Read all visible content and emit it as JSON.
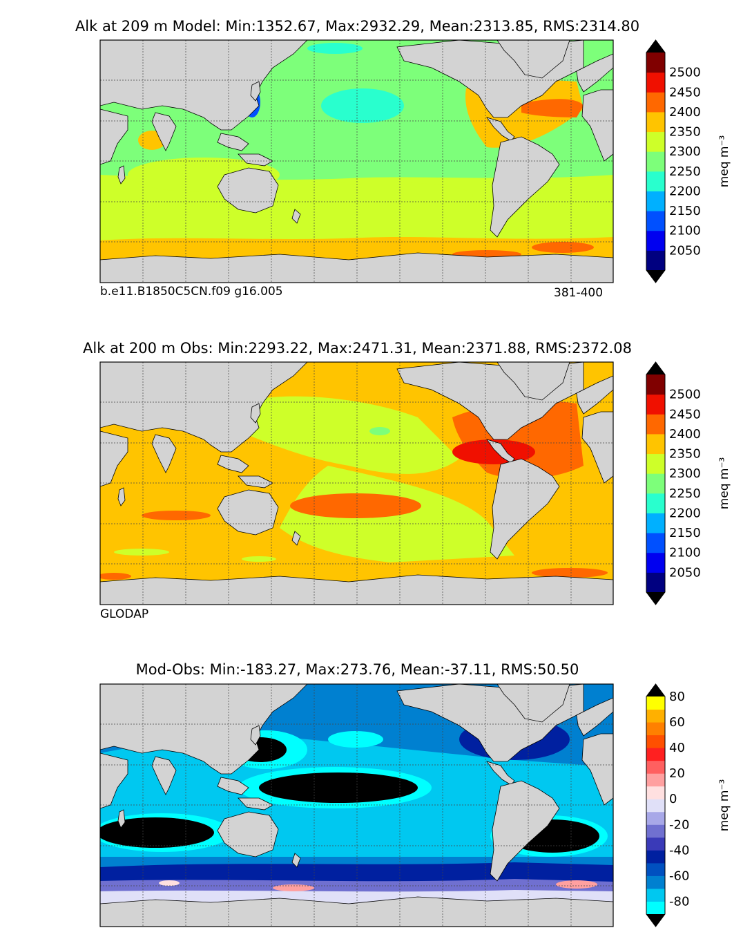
{
  "panels": [
    {
      "title": "Alk at 209 m Model: Min:1352.67, Max:2932.29, Mean:2313.85, RMS:2314.80",
      "note_left": "b.e11.B1850C5CN.f09 g16.005",
      "note_right": "381-400"
    },
    {
      "title": "Alk at 200 m Obs: Min:2293.22, Max:2471.31, Mean:2371.88, RMS:2372.08",
      "note_left": "GLODAP",
      "note_right": ""
    },
    {
      "title": "Mod-Obs: Min:-183.27, Max:273.76, Mean:-37.11, RMS:50.50",
      "note_left": "",
      "note_right": ""
    }
  ],
  "colorbars": [
    {
      "unit": "meq m⁻³",
      "levels": [
        2050,
        2100,
        2150,
        2200,
        2250,
        2300,
        2350,
        2400,
        2450,
        2500
      ],
      "labels": [
        "2050",
        "2100",
        "2150",
        "2200",
        "2250",
        "2300",
        "2350",
        "2400",
        "2450",
        "2500"
      ],
      "colors": [
        "#000080",
        "#0000f0",
        "#0050ff",
        "#00b0ff",
        "#29ffce",
        "#7dff7a",
        "#ceff29",
        "#ffc400",
        "#ff6800",
        "#f01000",
        "#800000"
      ],
      "under": "#000000",
      "over": "#000000"
    },
    {
      "unit": "meq m⁻³",
      "levels": [
        2050,
        2100,
        2150,
        2200,
        2250,
        2300,
        2350,
        2400,
        2450,
        2500
      ],
      "labels": [
        "2050",
        "2100",
        "2150",
        "2200",
        "2250",
        "2300",
        "2350",
        "2400",
        "2450",
        "2500"
      ],
      "colors": [
        "#000080",
        "#0000f0",
        "#0050ff",
        "#00b0ff",
        "#29ffce",
        "#7dff7a",
        "#ceff29",
        "#ffc400",
        "#ff6800",
        "#f01000",
        "#800000"
      ],
      "under": "#000000",
      "over": "#000000"
    },
    {
      "unit": "meq m⁻³",
      "levels": [
        -80,
        -70,
        -60,
        -50,
        -40,
        -30,
        -20,
        -10,
        0,
        10,
        20,
        30,
        40,
        50,
        60,
        70,
        80
      ],
      "labels": [
        "-80",
        "",
        "-60",
        "",
        "-40",
        "",
        "-20",
        "",
        "0",
        "",
        "20",
        "",
        "40",
        "",
        "60",
        "",
        "80"
      ],
      "colors": [
        "#00ffff",
        "#00c8f0",
        "#0080d0",
        "#0050c0",
        "#0020a0",
        "#3a3ab8",
        "#7070d0",
        "#a8a8e8",
        "#e0e0f8",
        "#ffe0e0",
        "#ffa0a0",
        "#ff6060",
        "#ff2020",
        "#ff5000",
        "#ff8000",
        "#ffb000",
        "#ffff00"
      ],
      "under": "#000000",
      "over": "#000000"
    }
  ],
  "chart_data": [
    {
      "type": "heatmap",
      "title": "Alk at 209 m Model: Min:1352.67, Max:2932.29, Mean:2313.85, RMS:2314.80",
      "variable": "Alk",
      "depth_m": 209,
      "source": "Model",
      "stats": {
        "min": 1352.67,
        "max": 2932.29,
        "mean": 2313.85,
        "rms": 2314.8
      },
      "colorbar_levels": [
        2050,
        2100,
        2150,
        2200,
        2250,
        2300,
        2350,
        2400,
        2450,
        2500
      ],
      "units": "meq m⁻³",
      "grid": true,
      "colorbar_extend": "both"
    },
    {
      "type": "heatmap",
      "title": "Alk at 200 m Obs: Min:2293.22, Max:2471.31, Mean:2371.88, RMS:2372.08",
      "variable": "Alk",
      "depth_m": 200,
      "source": "Obs",
      "stats": {
        "min": 2293.22,
        "max": 2471.31,
        "mean": 2371.88,
        "rms": 2372.08
      },
      "colorbar_levels": [
        2050,
        2100,
        2150,
        2200,
        2250,
        2300,
        2350,
        2400,
        2450,
        2500
      ],
      "units": "meq m⁻³",
      "grid": true,
      "colorbar_extend": "both"
    },
    {
      "type": "heatmap",
      "title": "Mod-Obs: Min:-183.27, Max:273.76, Mean:-37.11, RMS:50.50",
      "source": "Mod-Obs",
      "stats": {
        "min": -183.27,
        "max": 273.76,
        "mean": -37.11,
        "rms": 50.5
      },
      "colorbar_levels": [
        -80,
        -70,
        -60,
        -50,
        -40,
        -30,
        -20,
        -10,
        0,
        10,
        20,
        30,
        40,
        50,
        60,
        70,
        80
      ],
      "units": "meq m⁻³",
      "grid": true,
      "colorbar_extend": "both"
    }
  ]
}
